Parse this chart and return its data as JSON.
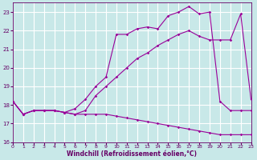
{
  "background_color": "#c8e8e8",
  "grid_color": "#b0d8d8",
  "line_color": "#990099",
  "xlabel": "Windchill (Refroidissement éolien,°C)",
  "xlabel_color": "#660066",
  "tick_color": "#660066",
  "xlim": [
    0,
    23
  ],
  "ylim": [
    16,
    23.5
  ],
  "yticks": [
    16,
    17,
    18,
    19,
    20,
    21,
    22,
    23
  ],
  "xticks": [
    0,
    1,
    2,
    3,
    4,
    5,
    6,
    7,
    8,
    9,
    10,
    11,
    12,
    13,
    14,
    15,
    16,
    17,
    18,
    19,
    20,
    21,
    22,
    23
  ],
  "line1_x": [
    0,
    1,
    2,
    3,
    4,
    5,
    6,
    7,
    8,
    9,
    10,
    11,
    12,
    13,
    14,
    15,
    16,
    17,
    18,
    19,
    20,
    21,
    22,
    23
  ],
  "line1_y": [
    18.2,
    17.5,
    17.7,
    17.7,
    17.7,
    17.6,
    17.5,
    17.5,
    17.5,
    17.5,
    17.4,
    17.3,
    17.2,
    17.1,
    17.0,
    16.9,
    16.8,
    16.7,
    16.6,
    16.5,
    16.4,
    16.4,
    16.4,
    16.4
  ],
  "line2_x": [
    0,
    1,
    2,
    3,
    4,
    5,
    6,
    7,
    8,
    9,
    10,
    11,
    12,
    13,
    14,
    15,
    16,
    17,
    18,
    19,
    20,
    21,
    22,
    23
  ],
  "line2_y": [
    18.2,
    17.5,
    17.7,
    17.7,
    17.7,
    17.6,
    17.5,
    17.7,
    18.5,
    19.0,
    19.5,
    20.0,
    20.5,
    20.8,
    21.2,
    21.5,
    21.8,
    22.0,
    21.7,
    21.5,
    21.5,
    21.5,
    22.9,
    18.3
  ],
  "line3_x": [
    0,
    1,
    2,
    3,
    4,
    5,
    6,
    7,
    8,
    9,
    10,
    11,
    12,
    13,
    14,
    15,
    16,
    17,
    18,
    19,
    20,
    21,
    22,
    23
  ],
  "line3_y": [
    18.2,
    17.5,
    17.7,
    17.7,
    17.7,
    17.6,
    17.8,
    18.3,
    19.0,
    19.5,
    21.8,
    21.8,
    22.1,
    22.2,
    22.1,
    22.8,
    23.0,
    23.3,
    22.9,
    23.0,
    18.2,
    17.7,
    17.7,
    17.7
  ]
}
